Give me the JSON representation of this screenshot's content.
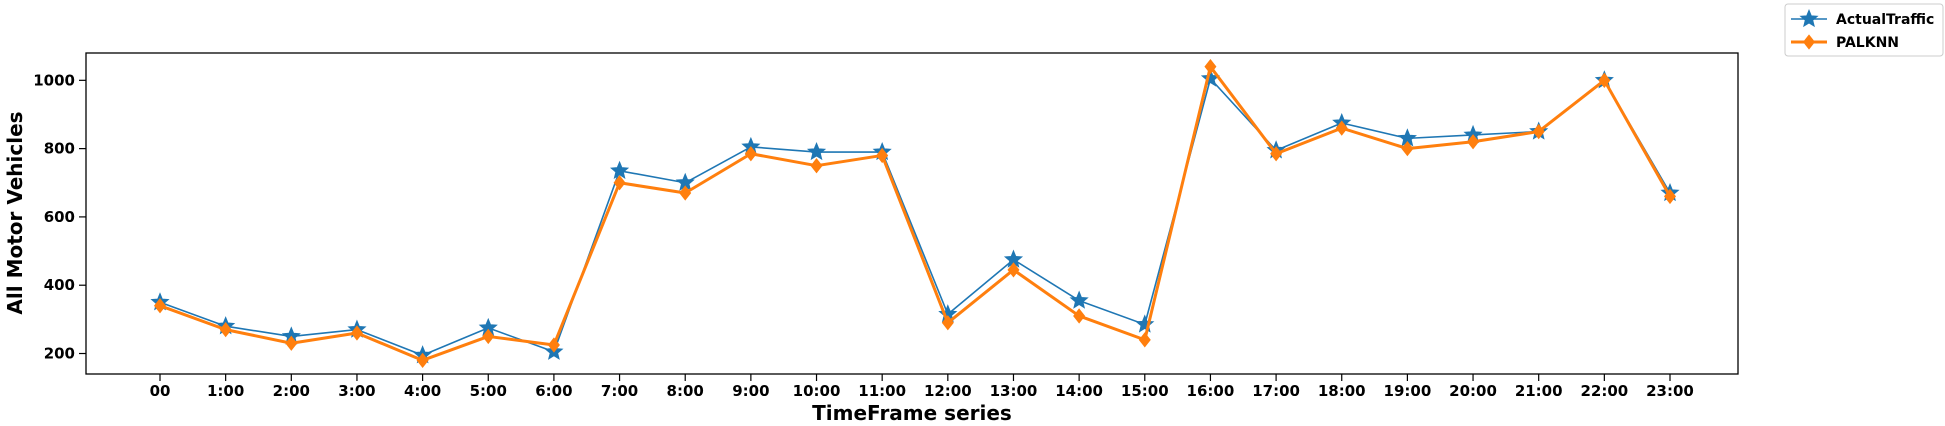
{
  "chart_data": {
    "type": "line",
    "xlabel": "TimeFrame series",
    "ylabel": "All Motor Vehicles",
    "categories": [
      "00",
      "1:00",
      "2:00",
      "3:00",
      "4:00",
      "5:00",
      "6:00",
      "7:00",
      "8:00",
      "9:00",
      "10:00",
      "11:00",
      "12:00",
      "13:00",
      "14:00",
      "15:00",
      "16:00",
      "17:00",
      "18:00",
      "19:00",
      "20:00",
      "21:00",
      "22:00",
      "23:00"
    ],
    "ylim": [
      140,
      1080
    ],
    "yticks": [
      200,
      400,
      600,
      800,
      1000
    ],
    "grid": false,
    "legend_position": "top-right-outside",
    "series": [
      {
        "name": "ActualTraffic",
        "color": "#1f77b4",
        "marker": "star",
        "values": [
          350,
          280,
          250,
          270,
          195,
          275,
          205,
          735,
          700,
          805,
          790,
          790,
          315,
          475,
          355,
          285,
          1005,
          795,
          875,
          830,
          840,
          850,
          1000,
          670
        ]
      },
      {
        "name": "PALKNN",
        "color": "#ff7f0e",
        "marker": "diamond",
        "values": [
          340,
          270,
          230,
          260,
          180,
          250,
          225,
          700,
          670,
          785,
          750,
          780,
          290,
          445,
          310,
          240,
          1040,
          785,
          860,
          800,
          820,
          850,
          1000,
          660
        ]
      }
    ]
  }
}
